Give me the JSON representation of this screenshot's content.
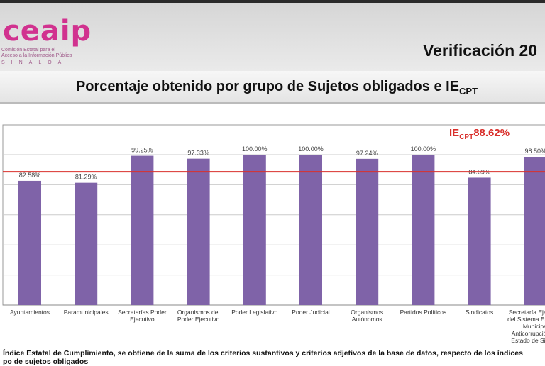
{
  "header": {
    "logo_text": "ceaip",
    "logo_subtitle_1": "Comisión Estatal para el",
    "logo_subtitle_2": "Acceso a la Información Pública",
    "logo_subtitle_3": "SINALOA",
    "title": "Verificación 20"
  },
  "chart_data": {
    "type": "bar",
    "title": "Porcentaje obtenido por grupo de Sujetos obligados e IE",
    "title_sub": "CPT",
    "categories": [
      [
        "Ayuntamientos"
      ],
      [
        "Paramunicipales"
      ],
      [
        "Secretarías Poder",
        "Ejecutivo"
      ],
      [
        "Organismos del",
        "Poder Ejecutivo"
      ],
      [
        "Poder Legislativo"
      ],
      [
        "Poder Judicial"
      ],
      [
        "Organismos",
        "Autónomos"
      ],
      [
        "Partidos Políticos"
      ],
      [
        "Sindicatos"
      ],
      [
        "Secretaría Ejecutiva",
        "del Sistema Estatal y",
        "Municipal",
        "Anticorrupción del",
        "Estado de Sinaloa"
      ]
    ],
    "values": [
      82.58,
      81.29,
      99.25,
      97.33,
      100.0,
      100.0,
      97.24,
      100.0,
      84.69,
      98.5
    ],
    "labels": [
      "82.58%",
      "81.29%",
      "99.25%",
      "97.33%",
      "100.00%",
      "100.00%",
      "97.24%",
      "100.00%",
      "84.69%",
      "98.50%"
    ],
    "ylim": [
      0,
      120
    ],
    "grid": true,
    "reference_line": {
      "value": 88.62,
      "label_prefix": "IE",
      "label_sub": "CPT",
      "label_value": "88.62%"
    },
    "bar_color": "#7f63a8",
    "line_color": "#d9302c"
  },
  "footnote": {
    "line1": "Índice Estatal de Cumplimiento, se obtiene de la suma de los criterios sustantivos y criterios adjetivos de la base de datos, respecto de los índices",
    "line2": "po de sujetos obligados"
  }
}
